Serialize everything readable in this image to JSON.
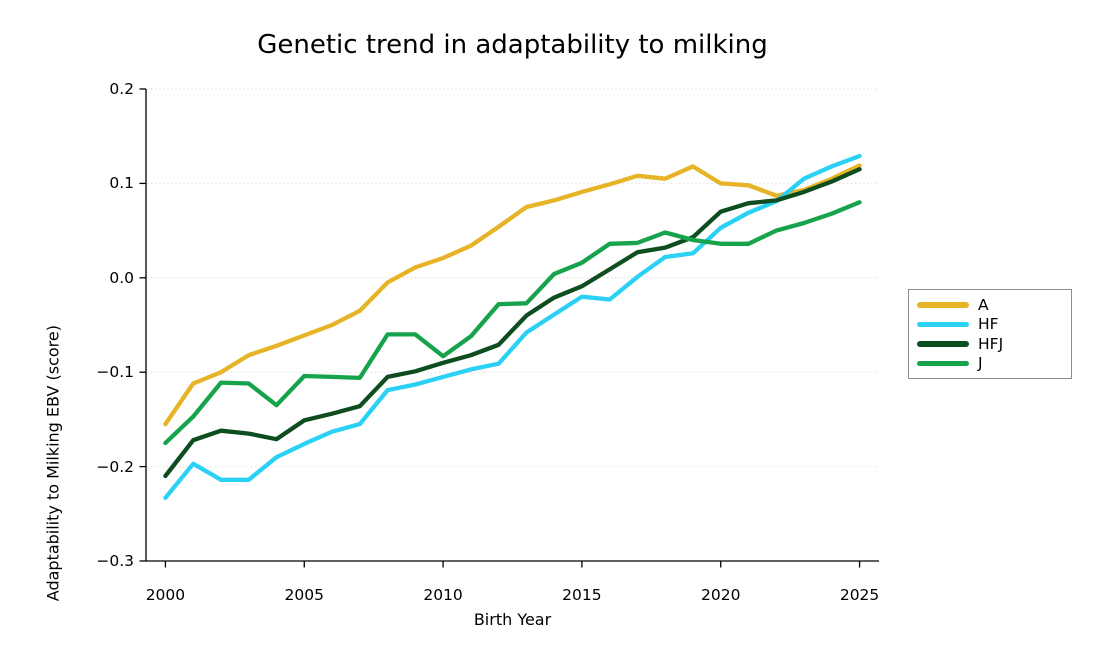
{
  "title": "Genetic trend in adaptability to milking",
  "x_axis": {
    "label": "Birth Year",
    "ticks": [
      {
        "value": 2000,
        "label": "2000"
      },
      {
        "value": 2005,
        "label": "2005"
      },
      {
        "value": 2010,
        "label": "2010"
      },
      {
        "value": 2015,
        "label": "2015"
      },
      {
        "value": 2020,
        "label": "2020"
      },
      {
        "value": 2025,
        "label": "2025"
      }
    ]
  },
  "y_axis": {
    "label": "Adaptability to Milking EBV (score)",
    "ticks": [
      {
        "value": 0.2,
        "label": "0.2"
      },
      {
        "value": 0.1,
        "label": "0.1"
      },
      {
        "value": 0.0,
        "label": "0.0"
      },
      {
        "value": -0.1,
        "label": "−0.1"
      },
      {
        "value": -0.2,
        "label": "−0.2"
      },
      {
        "value": -0.3,
        "label": "−0.3"
      }
    ]
  },
  "legend": {
    "entries": [
      {
        "label": "A",
        "color": "#E7B428"
      },
      {
        "label": "HF",
        "color": "#2BD1F4"
      },
      {
        "label": "HFJ",
        "color": "#0E4D1F"
      },
      {
        "label": "J",
        "color": "#16A34C"
      }
    ]
  },
  "colors": {
    "A": "#E7B428",
    "HF": "#2BD1F4",
    "HFJ": "#0E4D1F",
    "J": "#16A34C",
    "grid": "#DBDBDB",
    "spine": "#000000",
    "legend_border": "#8c8c8c"
  },
  "chart_data": {
    "type": "line",
    "title": "Genetic trend in adaptability to milking",
    "xlabel": "Birth Year",
    "ylabel": "Adaptability to Milking EBV (score)",
    "x": [
      2000,
      2001,
      2002,
      2003,
      2004,
      2005,
      2006,
      2007,
      2008,
      2009,
      2010,
      2011,
      2012,
      2013,
      2014,
      2015,
      2016,
      2017,
      2018,
      2019,
      2020,
      2021,
      2022,
      2023,
      2024,
      2025
    ],
    "series": [
      {
        "name": "A",
        "color": "#E7B428",
        "values": [
          -0.155,
          -0.112,
          -0.1,
          -0.082,
          -0.072,
          -0.061,
          -0.05,
          -0.035,
          -0.005,
          0.011,
          0.021,
          0.034,
          0.054,
          0.075,
          0.082,
          0.091,
          0.099,
          0.108,
          0.105,
          0.118,
          0.1,
          0.098,
          0.087,
          0.093,
          0.105,
          0.119
        ]
      },
      {
        "name": "HF",
        "color": "#2BD1F4",
        "values": [
          -0.233,
          -0.197,
          -0.214,
          -0.214,
          -0.19,
          -0.176,
          -0.163,
          -0.155,
          -0.119,
          -0.113,
          -0.105,
          -0.097,
          -0.091,
          -0.058,
          -0.039,
          -0.02,
          -0.023,
          0.001,
          0.022,
          0.026,
          0.053,
          0.069,
          0.081,
          0.105,
          0.118,
          0.129
        ]
      },
      {
        "name": "HFJ",
        "color": "#0E4D1F",
        "values": [
          -0.21,
          -0.172,
          -0.162,
          -0.165,
          -0.171,
          -0.151,
          -0.144,
          -0.136,
          -0.105,
          -0.099,
          -0.09,
          -0.082,
          -0.071,
          -0.04,
          -0.021,
          -0.009,
          0.009,
          0.027,
          0.032,
          0.043,
          0.07,
          0.079,
          0.082,
          0.091,
          0.102,
          0.115
        ]
      },
      {
        "name": "J",
        "color": "#16A34C",
        "values": [
          -0.175,
          -0.147,
          -0.111,
          -0.112,
          -0.135,
          -0.104,
          -0.105,
          -0.106,
          -0.06,
          -0.06,
          -0.083,
          -0.062,
          -0.028,
          -0.027,
          0.004,
          0.016,
          0.036,
          0.037,
          0.048,
          0.04,
          0.036,
          0.036,
          0.05,
          0.058,
          0.068,
          0.08
        ]
      }
    ],
    "xlim": [
      1999.3,
      2025.7
    ],
    "ylim": [
      -0.3,
      0.2
    ],
    "grid": true,
    "grid_style": "dotted horizontal",
    "legend_position": "right of axes"
  }
}
